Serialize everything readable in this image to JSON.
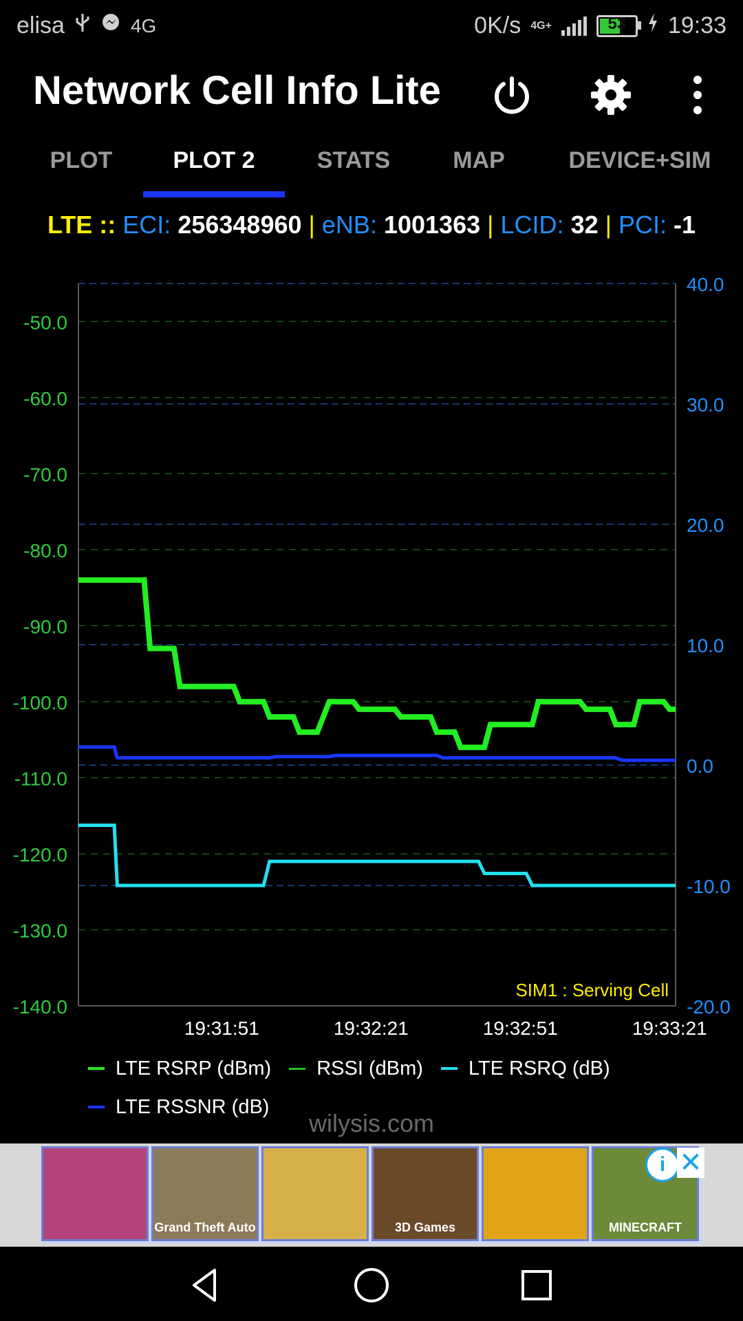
{
  "status_bar": {
    "carrier": "elisa",
    "network_small": "4G",
    "speed": "0K/s",
    "network_type": "4G+",
    "battery": "53",
    "time": "19:33"
  },
  "app_bar": {
    "title": "Network Cell Info Lite",
    "icons": [
      "power-icon",
      "gear-icon",
      "more-vert-icon"
    ]
  },
  "tabs": [
    {
      "label": "PLOT",
      "active": false
    },
    {
      "label": "PLOT 2",
      "active": true
    },
    {
      "label": "STATS",
      "active": false
    },
    {
      "label": "MAP",
      "active": false
    },
    {
      "label": "DEVICE+SIM",
      "active": false
    }
  ],
  "cell_info": {
    "tech": "LTE",
    "tech_sep": "::",
    "eci_label": "ECI:",
    "eci_value": "256348960",
    "enb_label": "eNB:",
    "enb_value": "1001363",
    "lcid_label": "LCID:",
    "lcid_value": "32",
    "pci_label": "PCI:",
    "pci_value": "-1",
    "sep": "|"
  },
  "chart_data": {
    "type": "line",
    "annotation": "SIM1 : Serving Cell",
    "left_axis": {
      "min": -140,
      "max": -45,
      "ticks": [
        "-50.0",
        "-60.0",
        "-70.0",
        "-80.0",
        "-90.0",
        "-100.0",
        "-110.0",
        "-120.0",
        "-130.0",
        "-140.0"
      ],
      "color": "#2ecc40"
    },
    "right_axis": {
      "min": -20,
      "max": 40,
      "ticks": [
        "40.0",
        "30.0",
        "20.0",
        "10.0",
        "0.0",
        "-10.0",
        "-20.0"
      ],
      "color": "#1e90ff"
    },
    "x_ticks": [
      "19:31:51",
      "19:32:21",
      "19:32:51",
      "19:33:21"
    ],
    "x_tick_positions": [
      0.24,
      0.49,
      0.74,
      0.99
    ],
    "grid": true,
    "series": [
      {
        "name": "LTE RSRP (dBm)",
        "axis": "left",
        "color": "#22ee22",
        "x": [
          0,
          0.11,
          0.12,
          0.16,
          0.17,
          0.26,
          0.27,
          0.31,
          0.32,
          0.36,
          0.37,
          0.4,
          0.42,
          0.46,
          0.47,
          0.53,
          0.54,
          0.59,
          0.6,
          0.63,
          0.64,
          0.68,
          0.69,
          0.76,
          0.77,
          0.84,
          0.85,
          0.89,
          0.9,
          0.93,
          0.94,
          0.98,
          0.99,
          1.0
        ],
        "y": [
          -84,
          -84,
          -93,
          -93,
          -98,
          -98,
          -100,
          -100,
          -102,
          -102,
          -104,
          -104,
          -100,
          -100,
          -101,
          -101,
          -102,
          -102,
          -104,
          -104,
          -106,
          -106,
          -103,
          -103,
          -100,
          -100,
          -101,
          -101,
          -103,
          -103,
          -100,
          -100,
          -101,
          -101
        ]
      },
      {
        "name": "RSSI (dBm)",
        "axis": "left",
        "color": "#22c422",
        "x": [],
        "y": []
      },
      {
        "name": "LTE RSRQ (dB)",
        "axis": "right",
        "color": "#22e0f0",
        "x": [
          0,
          0.06,
          0.065,
          0.31,
          0.32,
          0.67,
          0.68,
          0.75,
          0.76,
          1.0
        ],
        "y": [
          -5,
          -5,
          -10,
          -10,
          -8,
          -8,
          -9,
          -9,
          -10,
          -10
        ]
      },
      {
        "name": "LTE RSSNR (dB)",
        "axis": "right",
        "color": "#1a35ff",
        "x": [
          0,
          0.06,
          0.065,
          0.32,
          0.33,
          0.42,
          0.43,
          0.6,
          0.61,
          0.9,
          0.91,
          1.0
        ],
        "y": [
          1.5,
          1.5,
          0.6,
          0.6,
          0.7,
          0.7,
          0.8,
          0.8,
          0.6,
          0.6,
          0.4,
          0.4
        ]
      }
    ]
  },
  "legend": [
    {
      "label": "LTE RSRP (dBm)",
      "color": "#22ee22"
    },
    {
      "label": "RSSI (dBm)",
      "color": "#22c422"
    },
    {
      "label": "LTE RSRQ (dB)",
      "color": "#22e0f0"
    },
    {
      "label": "LTE RSSNR (dB)",
      "color": "#1a35ff"
    }
  ],
  "watermark": "wilysis.com",
  "ad": {
    "tiles": [
      {
        "name": "candy-crush",
        "color": "#b3437a",
        "caption": ""
      },
      {
        "name": "gta",
        "color": "#8a7a5a",
        "caption": "Grand Theft Auto"
      },
      {
        "name": "wheres-my-water",
        "color": "#d8b04a",
        "caption": ""
      },
      {
        "name": "fruit-ninja",
        "color": "#6b4a2a",
        "caption": "3D Games"
      },
      {
        "name": "temple-run",
        "color": "#e0a416",
        "caption": ""
      },
      {
        "name": "minecraft",
        "color": "#6c8a3a",
        "caption": "MINECRAFT"
      }
    ],
    "info": "i",
    "close": "✕"
  }
}
